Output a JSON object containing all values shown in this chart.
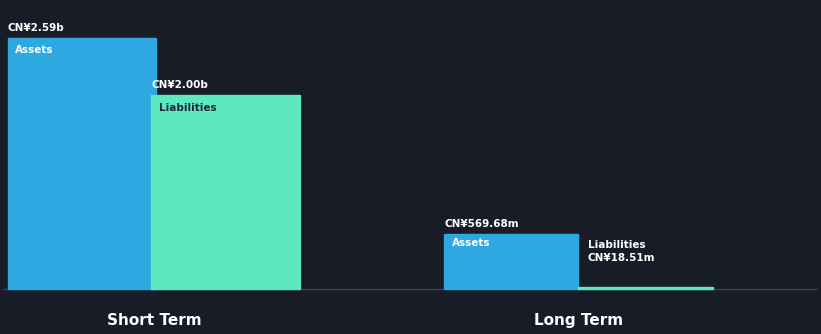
{
  "background_color": "#181c27",
  "short_term_assets": 2.59,
  "short_term_liabilities": 2.0,
  "long_term_assets": 0.56968,
  "long_term_liabilities": 0.01851,
  "short_term_assets_label": "CN¥2.59b",
  "short_term_liabilities_label": "CN¥2.00b",
  "long_term_assets_label": "CN¥569.68m",
  "long_term_liabilities_label": "CN¥18.51m",
  "assets_color": "#2da8e0",
  "liabilities_color": "#5de8c0",
  "text_color": "#ffffff",
  "dark_text_color": "#1e2535",
  "label_assets": "Assets",
  "label_liabilities": "Liabilities",
  "short_term_x_label": "Short Term",
  "long_term_x_label": "Long Term",
  "baseline_color": "#3a4055"
}
